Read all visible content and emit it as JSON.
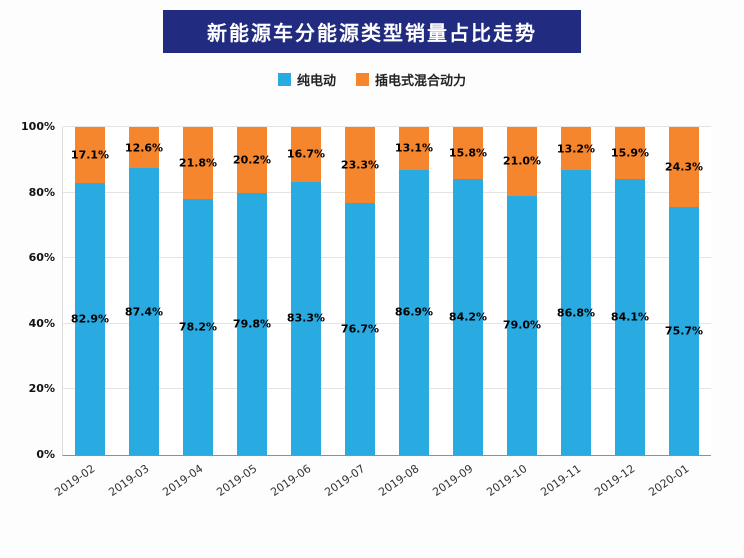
{
  "chart_data": {
    "type": "bar",
    "stacked": true,
    "title": "新能源车分能源类型销量占比走势",
    "categories": [
      "2019-02",
      "2019-03",
      "2019-04",
      "2019-05",
      "2019-06",
      "2019-07",
      "2019-08",
      "2019-09",
      "2019-10",
      "2019-11",
      "2019-12",
      "2020-01"
    ],
    "series": [
      {
        "name": "纯电动",
        "color": "#29abe2",
        "values": [
          82.9,
          87.4,
          78.2,
          79.8,
          83.3,
          76.7,
          86.9,
          84.2,
          79.0,
          86.8,
          84.1,
          75.7
        ]
      },
      {
        "name": "插电式混合动力",
        "color": "#f5862e",
        "values": [
          17.1,
          12.6,
          21.8,
          20.2,
          16.7,
          23.3,
          13.1,
          15.8,
          21.0,
          13.2,
          15.9,
          24.3
        ]
      }
    ],
    "ylim": [
      0,
      100
    ],
    "yticks": [
      "0%",
      "20%",
      "40%",
      "60%",
      "80%",
      "100%"
    ],
    "value_suffix": "%",
    "legend_position": "top",
    "grid": true,
    "colors": {
      "title_banner": "#212b80",
      "title_text": "#ffffff",
      "pure_electric": "#29abe2",
      "plugin_hybrid": "#f5862e"
    }
  }
}
